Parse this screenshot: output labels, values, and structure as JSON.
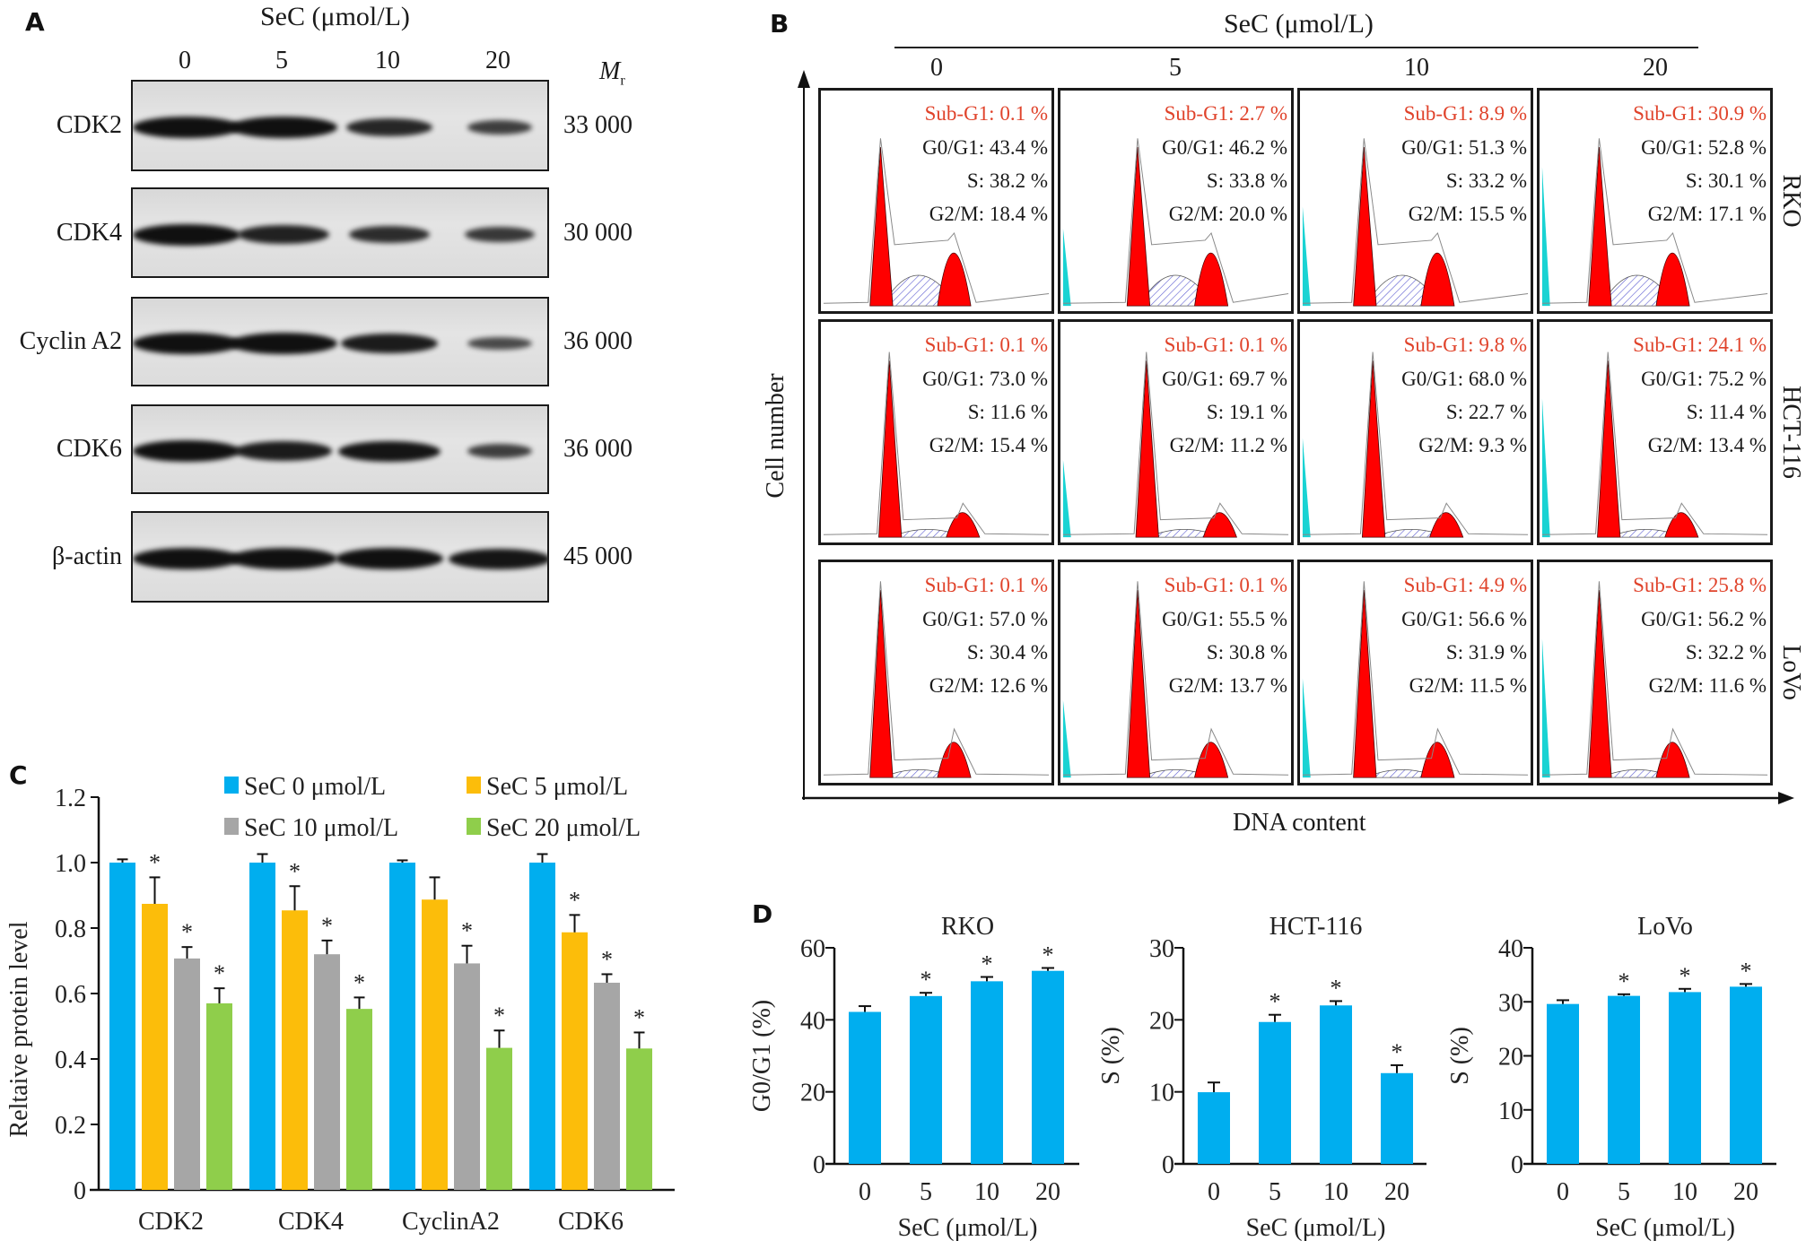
{
  "panel_a": {
    "letter": "A",
    "treatment_label": "SeC (μmol/L)",
    "lanes": [
      "0",
      "5",
      "10",
      "20"
    ],
    "mr_label": "M",
    "mr_sub": "r",
    "blots": [
      {
        "protein": "CDK2",
        "mr": "33 000",
        "band_intensity": [
          1.0,
          1.0,
          0.8,
          0.6
        ]
      },
      {
        "protein": "CDK4",
        "mr": "30 000",
        "band_intensity": [
          1.0,
          0.85,
          0.75,
          0.65
        ]
      },
      {
        "protein": "Cyclin A2",
        "mr": "36 000",
        "band_intensity": [
          1.0,
          1.0,
          0.9,
          0.5
        ]
      },
      {
        "protein": "CDK6",
        "mr": "36 000",
        "band_intensity": [
          1.0,
          0.9,
          0.95,
          0.6
        ]
      },
      {
        "protein": "β-actin",
        "mr": "45 000",
        "band_intensity": [
          1.0,
          1.0,
          1.0,
          0.95
        ]
      }
    ]
  },
  "panel_b": {
    "letter": "B",
    "treatment_label": "SeC (μmol/L)",
    "columns": [
      "0",
      "5",
      "10",
      "20"
    ],
    "ylabel": "Cell number",
    "xlabel": "DNA content",
    "colors": {
      "g1_peak": "#ff0000",
      "subg1": "#19d3d3",
      "s_phase_hatch": "#5a5ad0",
      "sub_text": "#e0432b"
    },
    "rows": [
      {
        "cell_line": "RKO",
        "cells": [
          {
            "sub_g1": "Sub-G1: 0.1 %",
            "g0g1": "G0/G1: 43.4 %",
            "s": "S: 38.2 %",
            "g2m": "G2/M: 18.4 %"
          },
          {
            "sub_g1": "Sub-G1: 2.7 %",
            "g0g1": "G0/G1: 46.2 %",
            "s": "S: 33.8 %",
            "g2m": "G2/M: 20.0 %"
          },
          {
            "sub_g1": "Sub-G1: 8.9 %",
            "g0g1": "G0/G1: 51.3 %",
            "s": "S: 33.2 %",
            "g2m": "G2/M: 15.5 %"
          },
          {
            "sub_g1": "Sub-G1: 30.9 %",
            "g0g1": "G0/G1: 52.8 %",
            "s": "S: 30.1 %",
            "g2m": "G2/M: 17.1 %"
          }
        ]
      },
      {
        "cell_line": "HCT-116",
        "cells": [
          {
            "sub_g1": "Sub-G1: 0.1 %",
            "g0g1": "G0/G1: 73.0 %",
            "s": "S: 11.6 %",
            "g2m": "G2/M: 15.4 %"
          },
          {
            "sub_g1": "Sub-G1: 0.1 %",
            "g0g1": "G0/G1: 69.7 %",
            "s": "S: 19.1 %",
            "g2m": "G2/M: 11.2 %"
          },
          {
            "sub_g1": "Sub-G1: 9.8 %",
            "g0g1": "G0/G1: 68.0 %",
            "s": "S: 22.7 %",
            "g2m": "G2/M: 9.3 %"
          },
          {
            "sub_g1": "Sub-G1: 24.1 %",
            "g0g1": "G0/G1: 75.2 %",
            "s": "S: 11.4 %",
            "g2m": "G2/M: 13.4 %"
          }
        ]
      },
      {
        "cell_line": "LoVo",
        "cells": [
          {
            "sub_g1": "Sub-G1: 0.1 %",
            "g0g1": "G0/G1: 57.0 %",
            "s": "S: 30.4 %",
            "g2m": "G2/M: 12.6 %"
          },
          {
            "sub_g1": "Sub-G1: 0.1 %",
            "g0g1": "G0/G1: 55.5 %",
            "s": "S: 30.8 %",
            "g2m": "G2/M: 13.7 %"
          },
          {
            "sub_g1": "Sub-G1: 4.9 %",
            "g0g1": "G0/G1: 56.6 %",
            "s": "S: 31.9 %",
            "g2m": "G2/M: 11.5 %"
          },
          {
            "sub_g1": "Sub-G1: 25.8 %",
            "g0g1": "G0/G1: 56.2 %",
            "s": "S: 32.2 %",
            "g2m": "G2/M: 11.6 %"
          }
        ]
      }
    ]
  },
  "chart_data": [
    {
      "id": "C",
      "type": "bar",
      "letter": "C",
      "title": "",
      "xlabel": "",
      "ylabel": "Reltaive protein level",
      "ylim": [
        0,
        1.2
      ],
      "yticks": [
        0,
        0.2,
        0.4,
        0.6,
        0.8,
        1.0,
        1.2
      ],
      "ytick_labels": [
        "0",
        "0.2",
        "0.4",
        "0.6",
        "0.8",
        "1.0",
        "1.2"
      ],
      "categories": [
        "CDK2",
        "CDK4",
        "CyclinA2",
        "CDK6"
      ],
      "legend_position": "top-right",
      "series": [
        {
          "name": "SeC 0 μmol/L",
          "color": "#00aeef",
          "values": [
            1.0,
            1.0,
            1.0,
            1.0
          ],
          "error": [
            0.01,
            0.026,
            0.007,
            0.026
          ],
          "significant": [
            false,
            false,
            false,
            false
          ]
        },
        {
          "name": "SeC 5 μmol/L",
          "color": "#fcbd0a",
          "values": [
            0.874,
            0.854,
            0.887,
            0.787
          ],
          "error": [
            0.081,
            0.074,
            0.068,
            0.053
          ],
          "significant": [
            true,
            true,
            false,
            true
          ]
        },
        {
          "name": "SeC 10 μmol/L",
          "color": "#a6a6a6",
          "values": [
            0.707,
            0.72,
            0.692,
            0.633
          ],
          "error": [
            0.035,
            0.042,
            0.054,
            0.026
          ],
          "significant": [
            true,
            true,
            true,
            true
          ]
        },
        {
          "name": "SeC 20 μmol/L",
          "color": "#8fce4b",
          "values": [
            0.57,
            0.553,
            0.434,
            0.432
          ],
          "error": [
            0.046,
            0.035,
            0.053,
            0.049
          ],
          "significant": [
            true,
            true,
            true,
            true
          ]
        }
      ],
      "significance_marker": "*"
    },
    {
      "id": "D-RKO",
      "type": "bar",
      "letter": "D",
      "title": "RKO",
      "xlabel": "SeC (μmol/L)",
      "ylabel": "G0/G1 (%)",
      "ylim": [
        0,
        60
      ],
      "yticks": [
        0,
        20,
        40,
        60
      ],
      "ytick_labels": [
        "0",
        "20",
        "40",
        "60"
      ],
      "categories": [
        "0",
        "5",
        "10",
        "20"
      ],
      "color": "#00aeef",
      "values": [
        42.2,
        46.6,
        50.7,
        53.6
      ],
      "error": [
        1.6,
        0.9,
        1.2,
        0.8
      ],
      "significant": [
        false,
        true,
        true,
        true
      ],
      "significance_marker": "*"
    },
    {
      "id": "D-HCT116",
      "type": "bar",
      "title": "HCT-116",
      "xlabel": "SeC (μmol/L)",
      "ylabel": "S (%)",
      "ylim": [
        0,
        30
      ],
      "yticks": [
        0,
        10,
        20,
        30
      ],
      "ytick_labels": [
        "0",
        "10",
        "20",
        "30"
      ],
      "categories": [
        "0",
        "5",
        "10",
        "20"
      ],
      "color": "#00aeef",
      "values": [
        9.95,
        19.7,
        22.0,
        12.6
      ],
      "error": [
        1.35,
        1.0,
        0.6,
        1.1
      ],
      "significant": [
        false,
        true,
        true,
        true
      ],
      "significance_marker": "*"
    },
    {
      "id": "D-LoVo",
      "type": "bar",
      "title": "LoVo",
      "xlabel": "SeC (μmol/L)",
      "ylabel": "S (%)",
      "ylim": [
        0,
        40
      ],
      "yticks": [
        0,
        10,
        20,
        30,
        40
      ],
      "ytick_labels": [
        "0",
        "10",
        "20",
        "30",
        "40"
      ],
      "categories": [
        "0",
        "5",
        "10",
        "20"
      ],
      "color": "#00aeef",
      "values": [
        29.6,
        31.1,
        31.8,
        32.8
      ],
      "error": [
        0.7,
        0.3,
        0.6,
        0.5
      ],
      "significant": [
        false,
        true,
        true,
        true
      ],
      "significance_marker": "*"
    }
  ]
}
